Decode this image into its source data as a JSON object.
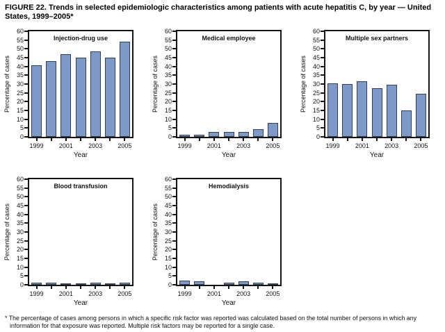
{
  "figure": {
    "title": "FIGURE 22. Trends in selected epidemiologic characteristics among patients with acute hepatitis C, by year — United States, 1999–2005*",
    "footnote": "* The percentage of cases among persons in which a specific risk factor was reported was calculated based on the total number of persons in which any information for that exposure was reported. Multiple risk factors may be reported for a single case."
  },
  "axes": {
    "ylabel": "Percentage of cases",
    "xlabel": "Year",
    "ymin": 0,
    "ymax": 60,
    "ystep": 5,
    "num_bars": 7,
    "xtick_labels": [
      "1999",
      "2001",
      "2003",
      "2005"
    ]
  },
  "colors": {
    "bar_fill": "#7d99c7",
    "bar_border": "#333f52",
    "axis": "#141414"
  },
  "chart_data": [
    {
      "type": "bar",
      "title": "Injection-drug use",
      "x": [
        1999,
        2000,
        2001,
        2002,
        2003,
        2004,
        2005
      ],
      "values": [
        40.5,
        43,
        47,
        45,
        48.5,
        45,
        54
      ],
      "xlabel": "Year",
      "ylabel": "Percentage of cases",
      "ylim": [
        0,
        60
      ]
    },
    {
      "type": "bar",
      "title": "Medical employee",
      "x": [
        1999,
        2000,
        2001,
        2002,
        2003,
        2004,
        2005
      ],
      "values": [
        1,
        1,
        2.8,
        2.8,
        2.8,
        4.4,
        7.8
      ],
      "xlabel": "Year",
      "ylabel": "Percentage of cases",
      "ylim": [
        0,
        60
      ]
    },
    {
      "type": "bar",
      "title": "Multiple sex partners",
      "x": [
        1999,
        2000,
        2001,
        2002,
        2003,
        2004,
        2005
      ],
      "values": [
        30.5,
        30,
        31.5,
        27.5,
        29.5,
        15,
        24.5
      ],
      "xlabel": "Year",
      "ylabel": "Percentage of cases",
      "ylim": [
        0,
        60
      ]
    },
    {
      "type": "bar",
      "title": "Blood transfusion",
      "x": [
        1999,
        2000,
        2001,
        2002,
        2003,
        2004,
        2005
      ],
      "values": [
        1,
        1.2,
        0.3,
        0.8,
        1,
        0.8,
        1.3
      ],
      "xlabel": "Year",
      "ylabel": "Percentage of cases",
      "ylim": [
        0,
        60
      ]
    },
    {
      "type": "bar",
      "title": "Hemodialysis",
      "x": [
        1999,
        2000,
        2001,
        2002,
        2003,
        2004,
        2005
      ],
      "values": [
        2.4,
        2.1,
        0,
        1,
        2.1,
        1.3,
        0.5
      ],
      "xlabel": "Year",
      "ylabel": "Percentage of cases",
      "ylim": [
        0,
        60
      ]
    }
  ]
}
